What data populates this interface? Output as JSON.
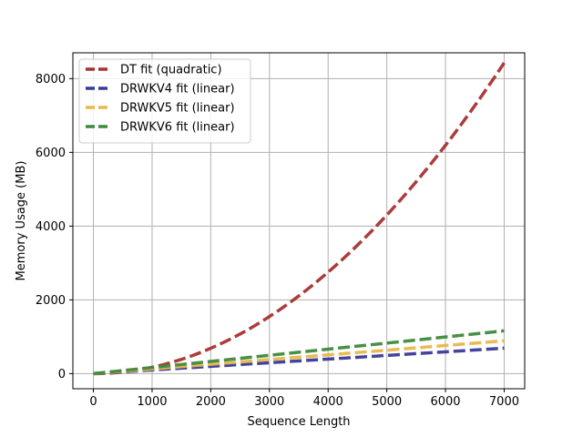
{
  "chart_data": {
    "type": "line",
    "xlabel": "Sequence Length",
    "ylabel": "Memory Usage (MB)",
    "xlim": [
      -350,
      7350
    ],
    "ylim": [
      -410,
      8700
    ],
    "xticks": [
      0,
      1000,
      2000,
      3000,
      4000,
      5000,
      6000,
      7000
    ],
    "yticks": [
      0,
      2000,
      4000,
      6000,
      8000
    ],
    "grid": true,
    "legend_position": "top-left",
    "series": [
      {
        "name": "DT fit (quadratic)",
        "color": "#a83232",
        "line_style": "dashed",
        "model": "quadratic",
        "x": [
          0,
          500,
          1000,
          1500,
          2000,
          2500,
          3000,
          3500,
          4000,
          4500,
          5000,
          5500,
          6000,
          6500,
          7000
        ],
        "y": [
          0,
          70,
          230,
          480,
          800,
          1200,
          1680,
          2260,
          2870,
          3600,
          4400,
          5250,
          6160,
          7140,
          8300
        ]
      },
      {
        "name": "DRWKV4 fit (linear)",
        "color": "#3a3a9a",
        "line_style": "dashed",
        "model": "linear",
        "x": [
          0,
          7000
        ],
        "y": [
          0,
          690
        ]
      },
      {
        "name": "DRWKV5 fit (linear)",
        "color": "#e8b84a",
        "line_style": "dashed",
        "model": "linear",
        "x": [
          0,
          7000
        ],
        "y": [
          0,
          890
        ]
      },
      {
        "name": "DRWKV6 fit (linear)",
        "color": "#3d8a3d",
        "line_style": "dashed",
        "model": "linear",
        "x": [
          0,
          7000
        ],
        "y": [
          0,
          1160
        ]
      }
    ]
  }
}
